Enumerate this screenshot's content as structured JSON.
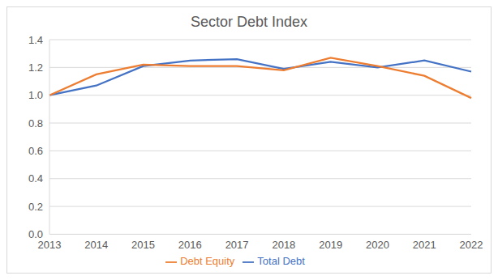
{
  "chart_data": {
    "type": "line",
    "title": "Sector Debt Index",
    "categories": [
      "2013",
      "2014",
      "2015",
      "2016",
      "2017",
      "2018",
      "2019",
      "2020",
      "2021",
      "2022"
    ],
    "series": [
      {
        "name": "Total Debt",
        "color": "#4472c4",
        "values": [
          1.0,
          1.07,
          1.21,
          1.25,
          1.26,
          1.19,
          1.24,
          1.2,
          1.25,
          1.17
        ]
      },
      {
        "name": "Debt Equity",
        "color": "#ed7d31",
        "values": [
          1.0,
          1.15,
          1.22,
          1.21,
          1.21,
          1.18,
          1.27,
          1.21,
          1.14,
          0.98
        ]
      }
    ],
    "ylim": [
      0,
      1.4
    ],
    "yticks": [
      {
        "value": 0,
        "label": "0.0"
      },
      0.2,
      0.4,
      0.6,
      0.8,
      {
        "value": 1,
        "label": "1.0"
      },
      1.2,
      1.4
    ],
    "grid": true,
    "legend": "bottom"
  }
}
